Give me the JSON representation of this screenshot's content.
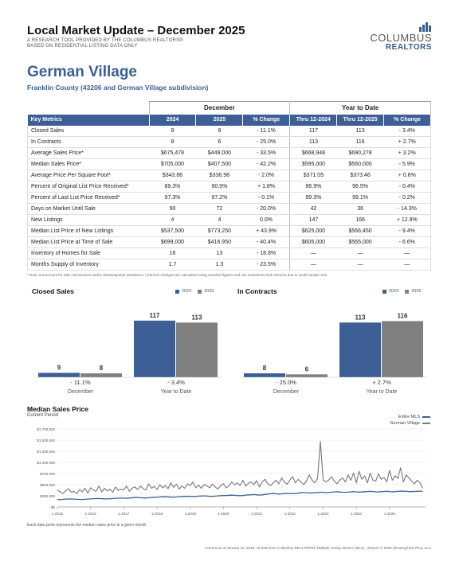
{
  "header": {
    "title": "Local Market Update – December 2025",
    "subtitle_line1": "A RESEARCH TOOL PROVIDED BY THE COLUMBUS REALTORS®",
    "subtitle_line2": "BASED ON RESIDENTIAL LISTING DATA ONLY",
    "logo_word1": "COLUMBUS",
    "logo_word2": "REALTORS"
  },
  "area": {
    "title": "German Village",
    "subtitle": "Franklin County (43206 and German Village subdivision)"
  },
  "table": {
    "group_december": "December",
    "group_ytd": "Year to Date",
    "columns": [
      "Key Metrics",
      "2024",
      "2025",
      "% Change",
      "Thru 12-2024",
      "Thru 12-2025",
      "% Change"
    ],
    "rows": [
      [
        "Closed Sales",
        "9",
        "8",
        "- 11.1%",
        "117",
        "113",
        "- 3.4%"
      ],
      [
        "In Contracts",
        "8",
        "6",
        "- 25.0%",
        "113",
        "116",
        "+ 2.7%"
      ],
      [
        "Average Sales Price*",
        "$675,478",
        "$449,000",
        "- 33.5%",
        "$668,948",
        "$690,278",
        "+ 3.2%"
      ],
      [
        "Median Sales Price*",
        "$705,000",
        "$407,500",
        "- 42.2%",
        "$595,000",
        "$560,000",
        "- 5.9%"
      ],
      [
        "Average Price Per Square Foot*",
        "$343.86",
        "$336.98",
        "- 2.0%",
        "$371.05",
        "$373.46",
        "+ 0.6%"
      ],
      [
        "Percent of Original List Price Received*",
        "89.3%",
        "90.9%",
        "+ 1.8%",
        "96.9%",
        "96.5%",
        "- 0.4%"
      ],
      [
        "Percent of Last List Price Received*",
        "97.3%",
        "97.2%",
        "- 0.1%",
        "99.3%",
        "99.1%",
        "- 0.2%"
      ],
      [
        "Days on Market Until Sale",
        "90",
        "72",
        "- 20.0%",
        "42",
        "36",
        "- 14.3%"
      ],
      [
        "New Listings",
        "4",
        "4",
        "0.0%",
        "147",
        "166",
        "+ 12.9%"
      ],
      [
        "Median List Price of New Listings",
        "$537,500",
        "$773,250",
        "+ 43.9%",
        "$625,000",
        "$566,450",
        "- 9.4%"
      ],
      [
        "Median List Price at Time of Sale",
        "$699,000",
        "$416,950",
        "- 40.4%",
        "$605,000",
        "$565,000",
        "- 6.6%"
      ],
      [
        "Inventory of Homes for Sale",
        "16",
        "13",
        "- 18.8%",
        "—",
        "—",
        "—"
      ],
      [
        "Months Supply of Inventory",
        "1.7",
        "1.3",
        "- 23.5%",
        "—",
        "—",
        "—"
      ]
    ]
  },
  "footnote": "* Does not account for sale concessions and/or downpayment assistance. | Percent changes are calculated using rounded figures and can sometimes look extreme due to small sample size.",
  "colors": {
    "series_2024": "#3d5f95",
    "series_2025": "#808080",
    "entire_mls": "#3d5f95",
    "german_village": "#777777"
  },
  "chart_data": [
    {
      "type": "bar",
      "title": "Closed Sales",
      "categories": [
        "December",
        "Year to Date"
      ],
      "series": [
        {
          "name": "2024",
          "values": [
            9,
            117
          ]
        },
        {
          "name": "2025",
          "values": [
            8,
            113
          ]
        }
      ],
      "value_labels": [
        [
          "9",
          "117"
        ],
        [
          "8",
          "113"
        ]
      ],
      "changes": [
        "- 11.1%",
        "- 3.4%"
      ],
      "ylim": [
        0,
        125
      ]
    },
    {
      "type": "bar",
      "title": "In Contracts",
      "categories": [
        "December",
        "Year to Date"
      ],
      "series": [
        {
          "name": "2024",
          "values": [
            8,
            113
          ]
        },
        {
          "name": "2025",
          "values": [
            6,
            116
          ]
        }
      ],
      "value_labels": [
        [
          "8",
          "113"
        ],
        [
          "6",
          "116"
        ]
      ],
      "changes": [
        "- 25.0%",
        "+ 2.7%"
      ],
      "ylim": [
        0,
        125
      ]
    },
    {
      "type": "line",
      "title": "Median Sales Price",
      "subtitle": "Current Period",
      "legend": [
        "Entire MLS",
        "German Village"
      ],
      "y_ticks": [
        "$1,750,000",
        "$1,500,000",
        "$1,250,000",
        "$1,000,000",
        "$750,000",
        "$500,000",
        "$250,000",
        "$0"
      ],
      "y_tick_values": [
        1750000,
        1500000,
        1250000,
        1000000,
        750000,
        500000,
        250000,
        0
      ],
      "x_ticks": [
        "1-2015",
        "1-2016",
        "1-2017",
        "1-2018",
        "1-2019",
        "1-2020",
        "1-2021",
        "1-2022",
        "1-2023",
        "1-2024",
        "1-2025"
      ],
      "ylim": [
        0,
        1750000
      ],
      "x_start_year": 2015,
      "series": [
        {
          "name": "Entire MLS",
          "values": [
            165000,
            168000,
            170000,
            175000,
            178000,
            180000,
            176000,
            172000,
            170000,
            168000,
            172000,
            178000,
            180000,
            185000,
            188000,
            190000,
            186000,
            182000,
            180000,
            184000,
            190000,
            194000,
            196000,
            200000,
            198000,
            194000,
            200000,
            206000,
            210000,
            212000,
            208000,
            204000,
            202000,
            206000,
            212000,
            218000,
            220000,
            224000,
            228000,
            230000,
            226000,
            222000,
            220000,
            224000,
            230000,
            236000,
            238000,
            240000,
            236000,
            232000,
            236000,
            242000,
            246000,
            248000,
            244000,
            240000,
            238000,
            242000,
            248000,
            254000,
            256000,
            258000,
            262000,
            264000,
            260000,
            256000,
            254000,
            258000,
            266000,
            272000,
            274000,
            278000,
            272000,
            268000,
            272000,
            282000,
            290000,
            296000,
            300000,
            296000,
            290000,
            294000,
            300000,
            306000,
            300000,
            296000,
            300000,
            310000,
            318000,
            322000,
            320000,
            316000,
            312000,
            318000,
            324000,
            330000,
            326000,
            320000,
            324000,
            332000,
            338000,
            340000,
            336000,
            330000,
            328000,
            332000,
            338000,
            344000,
            338000,
            334000,
            336000,
            342000,
            346000,
            350000,
            346000,
            340000,
            338000,
            342000,
            348000,
            352000,
            346000,
            340000,
            344000,
            350000,
            354000,
            356000,
            352000,
            346000,
            344000,
            348000,
            352000,
            356000,
            350000
          ]
        },
        {
          "name": "German Village",
          "values": [
            380000,
            340000,
            300000,
            360000,
            410000,
            330000,
            350000,
            300000,
            390000,
            340000,
            420000,
            310000,
            430000,
            380000,
            350000,
            470000,
            340000,
            420000,
            360000,
            400000,
            330000,
            450000,
            370000,
            400000,
            380000,
            470000,
            350000,
            420000,
            450000,
            390000,
            470000,
            410000,
            380000,
            520000,
            420000,
            460000,
            390000,
            500000,
            430000,
            480000,
            410000,
            540000,
            440000,
            510000,
            400000,
            470000,
            420000,
            520000,
            480000,
            560000,
            430000,
            490000,
            420000,
            500000,
            470000,
            430000,
            510000,
            450000,
            400000,
            480000,
            520000,
            430000,
            470000,
            560000,
            500000,
            540000,
            480000,
            600000,
            470000,
            530000,
            560000,
            500000,
            590000,
            450000,
            560000,
            620000,
            520000,
            480000,
            540000,
            600000,
            520000,
            650000,
            560000,
            510000,
            600000,
            680000,
            540000,
            620000,
            560000,
            500000,
            580000,
            720000,
            600000,
            540000,
            640000,
            1470000,
            610000,
            560000,
            600000,
            680000,
            580000,
            520000,
            600000,
            650000,
            560000,
            720000,
            600000,
            760000,
            540000,
            800000,
            620000,
            700000,
            540000,
            760000,
            600000,
            580000,
            740000,
            620000,
            660000,
            560000,
            820000,
            600000,
            700000,
            640000,
            880000,
            560000,
            720000,
            650000,
            580000,
            520000,
            600000,
            540000,
            420000
          ]
        }
      ]
    }
  ],
  "msp_note": "Each data point represents the median sales price in a given month.",
  "footer": "Current as of January 10, 2026. All data from Columbus REALTORS® Multiple Listing Service (MLS). | Report © 2026 ShowingTime Plus, LLC."
}
